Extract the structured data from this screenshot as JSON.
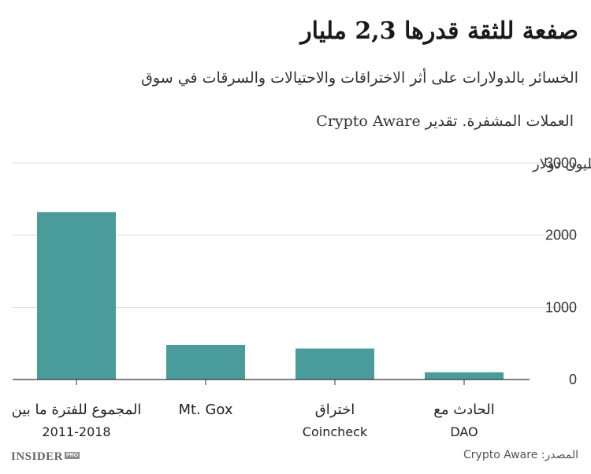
{
  "header": {
    "title": "صفعة للثقة قدرها 2,3 مليار",
    "subtitle_line1": "الخسائر بالدولارات على أثر الاختراقات والاحتيالات والسرقات في سوق",
    "subtitle_line2": "العملات المشفرة. تقدير Crypto Aware"
  },
  "footer": {
    "source": "المصدر: Crypto Aware",
    "logo_text": "INSIDER",
    "logo_badge": "PRO"
  },
  "colors": {
    "bar": "#4a9c9b",
    "grid": "#dddddd",
    "axis": "#333333",
    "text": "#222222"
  },
  "chart_data": {
    "type": "bar",
    "categories": [
      [
        "المجموع للفترة ما بين",
        "2011-2018"
      ],
      [
        "Mt. Gox"
      ],
      [
        "اختراق",
        "Coincheck"
      ],
      [
        "الحادث مع",
        "DAO"
      ]
    ],
    "values": [
      2320,
      480,
      430,
      100
    ],
    "ylim": [
      0,
      3000
    ],
    "yticks": [
      0,
      1000,
      2000,
      3000
    ],
    "ylabel": "مليون دولار",
    "yaxis_position": "right",
    "grid": true,
    "legend": "none"
  }
}
